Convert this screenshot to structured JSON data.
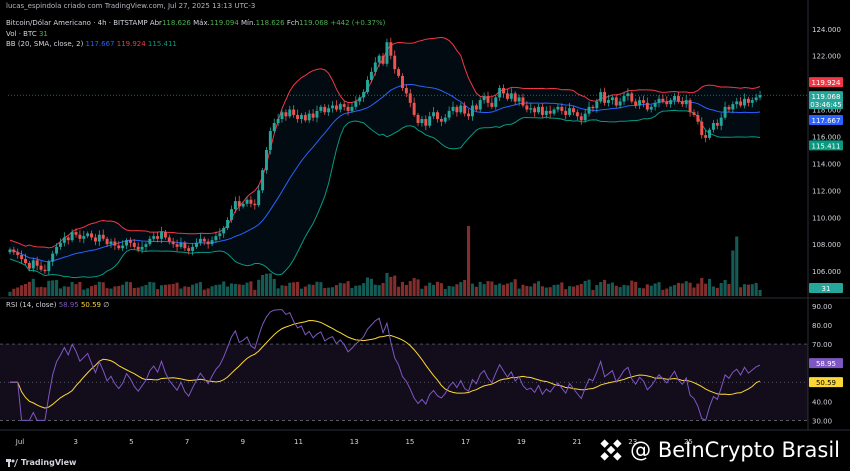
{
  "header": {
    "credit": "lucas_espindola criado com TradingView.com, Jul 27, 2025 13:13 UTC-3",
    "symbol_line": "Bitcoin/Dólar Americano · 4h · BITSTAMP",
    "ohlc": {
      "abr_label": "Abr",
      "abr": "118.626",
      "max_label": "Máx.",
      "max": "119.094",
      "min_label": "Mín.",
      "min": "118.626",
      "fch_label": "Fch",
      "fch": "119.068",
      "chg": "+442 (+0.37%)"
    },
    "vol_line": {
      "label": "Vol · BTC",
      "value": "31"
    },
    "bb_line": {
      "label": "BB (20, SMA, close, 2)",
      "v1": "117.667",
      "v2": "119.924",
      "v3": "115.411"
    },
    "rsi_line": {
      "label": "RSI (14, close)",
      "v1": "58.95",
      "v2": "50.59",
      "v3": "∅"
    }
  },
  "badges": {
    "upper": "119.924",
    "price": "119.068",
    "countdown": "03:46:45",
    "basis": "117.667",
    "lower": "115.411",
    "volume": "31",
    "rsi": "58.95",
    "rsi_ma": "50.59"
  },
  "footer": {
    "brand": "TradingView"
  },
  "watermark": {
    "text": "@ BeInCrypto Brasil"
  },
  "colors": {
    "up": "#26a69a",
    "down": "#ef5350",
    "basis": "#2962ff",
    "upper": "#f23645",
    "lower": "#089981",
    "rsi": "#7e57c2",
    "rsi_ma": "#fdd835",
    "bg": "#000000"
  },
  "chart_data": [
    {
      "type": "candlestick",
      "symbol": "BTC/USD",
      "interval": "4h",
      "x_ticks": [
        "Jul",
        "3",
        "5",
        "7",
        "9",
        "11",
        "13",
        "15",
        "17",
        "19",
        "21",
        "23",
        "25"
      ],
      "y_ticks": [
        106000,
        108000,
        110000,
        112000,
        114000,
        116000,
        118000,
        120000,
        122000,
        124000
      ],
      "ylim": [
        104300,
        124800
      ],
      "closes": [
        107600,
        107400,
        107200,
        106900,
        106600,
        106200,
        106800,
        106400,
        106100,
        106000,
        106700,
        107300,
        107800,
        108100,
        108500,
        108300,
        108900,
        108700,
        108400,
        108600,
        108800,
        108500,
        108200,
        108700,
        108400,
        108000,
        108200,
        107900,
        107700,
        107900,
        108300,
        108100,
        107800,
        107600,
        107800,
        108000,
        108400,
        108600,
        108400,
        108900,
        108500,
        108200,
        108000,
        107800,
        108100,
        107700,
        107500,
        107800,
        108100,
        108400,
        108200,
        108000,
        108300,
        108600,
        108800,
        109200,
        109800,
        110600,
        111200,
        110800,
        111000,
        111300,
        111000,
        110900,
        112000,
        113500,
        115000,
        116400,
        117000,
        117300,
        117800,
        117500,
        118000,
        117600,
        117300,
        117600,
        117200,
        117700,
        117400,
        117900,
        118200,
        117800,
        118100,
        118300,
        118000,
        118400,
        118200,
        117900,
        118200,
        118600,
        118900,
        119300,
        120200,
        120800,
        121500,
        122000,
        121400,
        123000,
        122000,
        121000,
        120500,
        119600,
        119200,
        118500,
        117600,
        117000,
        117300,
        116800,
        117500,
        117800,
        117300,
        117100,
        117400,
        117900,
        118200,
        117800,
        118300,
        117700,
        117500,
        118300,
        118000,
        118700,
        119000,
        118500,
        118200,
        118900,
        119600,
        119200,
        118800,
        119200,
        118600,
        118900,
        118300,
        118000,
        118100,
        117800,
        118200,
        117600,
        117900,
        117700,
        118000,
        118200,
        117900,
        117600,
        118100,
        117800,
        117500,
        117200,
        117700,
        118200,
        118100,
        118600,
        119300,
        118500,
        118700,
        118900,
        118300,
        118600,
        119000,
        119200,
        118600,
        118300,
        118700,
        118500,
        118000,
        118200,
        118500,
        118800,
        118600,
        118400,
        118700,
        119000,
        118600,
        118400,
        118700,
        117800,
        117600,
        117100,
        116100,
        115900,
        116500,
        117000,
        116800,
        117400,
        118200,
        118000,
        118400,
        118600,
        118300,
        118800,
        118500,
        118700,
        118900,
        119068
      ],
      "bollinger": {
        "period": 20,
        "mult": 2,
        "basis_last": 117667,
        "upper_last": 119924,
        "lower_last": 115411
      },
      "volume_spikes_btc": {
        "118": 2000,
        "186": 1300,
        "187": 1700
      },
      "volume_last": 31
    },
    {
      "type": "line",
      "title": "RSI (14, close)",
      "y_ticks": [
        30,
        40,
        50,
        60,
        70,
        80,
        90
      ],
      "ylim": [
        26,
        91
      ],
      "bands": [
        30,
        70
      ],
      "rsi_last": 58.95,
      "rsi_ma_last": 50.59
    }
  ]
}
